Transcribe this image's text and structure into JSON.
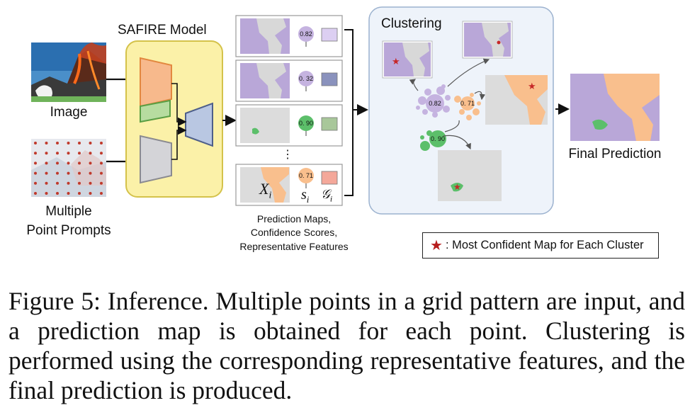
{
  "figure": {
    "model_title": "SAFIRE Model",
    "image_label": "Image",
    "prompts_label_line1": "Multiple",
    "prompts_label_line2": "Point Prompts",
    "ellipsis": "⋮",
    "maps_caption_line1": "Prediction Maps,",
    "maps_caption_line2": "Confidence Scores,",
    "maps_caption_line3": "Representative Features",
    "map_rows": [
      {
        "score": "0.82"
      },
      {
        "score": "0. 32"
      },
      {
        "score": "0. 90"
      },
      {
        "score": "0. 71"
      }
    ],
    "symbols": {
      "x": "X",
      "x_sub": "i",
      "s": "s",
      "s_sub": "i",
      "g": "𝒢",
      "g_sub": "i"
    },
    "clustering_title": "Clustering",
    "cluster_scores": [
      "0.82",
      "0. 71",
      "0. 90"
    ],
    "final_label": "Final Prediction",
    "legend_star": "★",
    "legend_text": ": Most Confident Map for Each Cluster"
  },
  "caption": "Figure 5: Inference. Multiple points in a grid pattern are input, and a prediction map is obtained for each point. Clustering is performed using the corresponding representative features, and the final prediction is produced.",
  "colors": {
    "purple": "#b9a7d8",
    "orange": "#f9bf8d",
    "green": "#5cbf6a",
    "gray_map": "#d9d9d9",
    "panel_bg": "#eef3fa",
    "model_bg": "#fbf1a8",
    "star": "#c62828"
  }
}
